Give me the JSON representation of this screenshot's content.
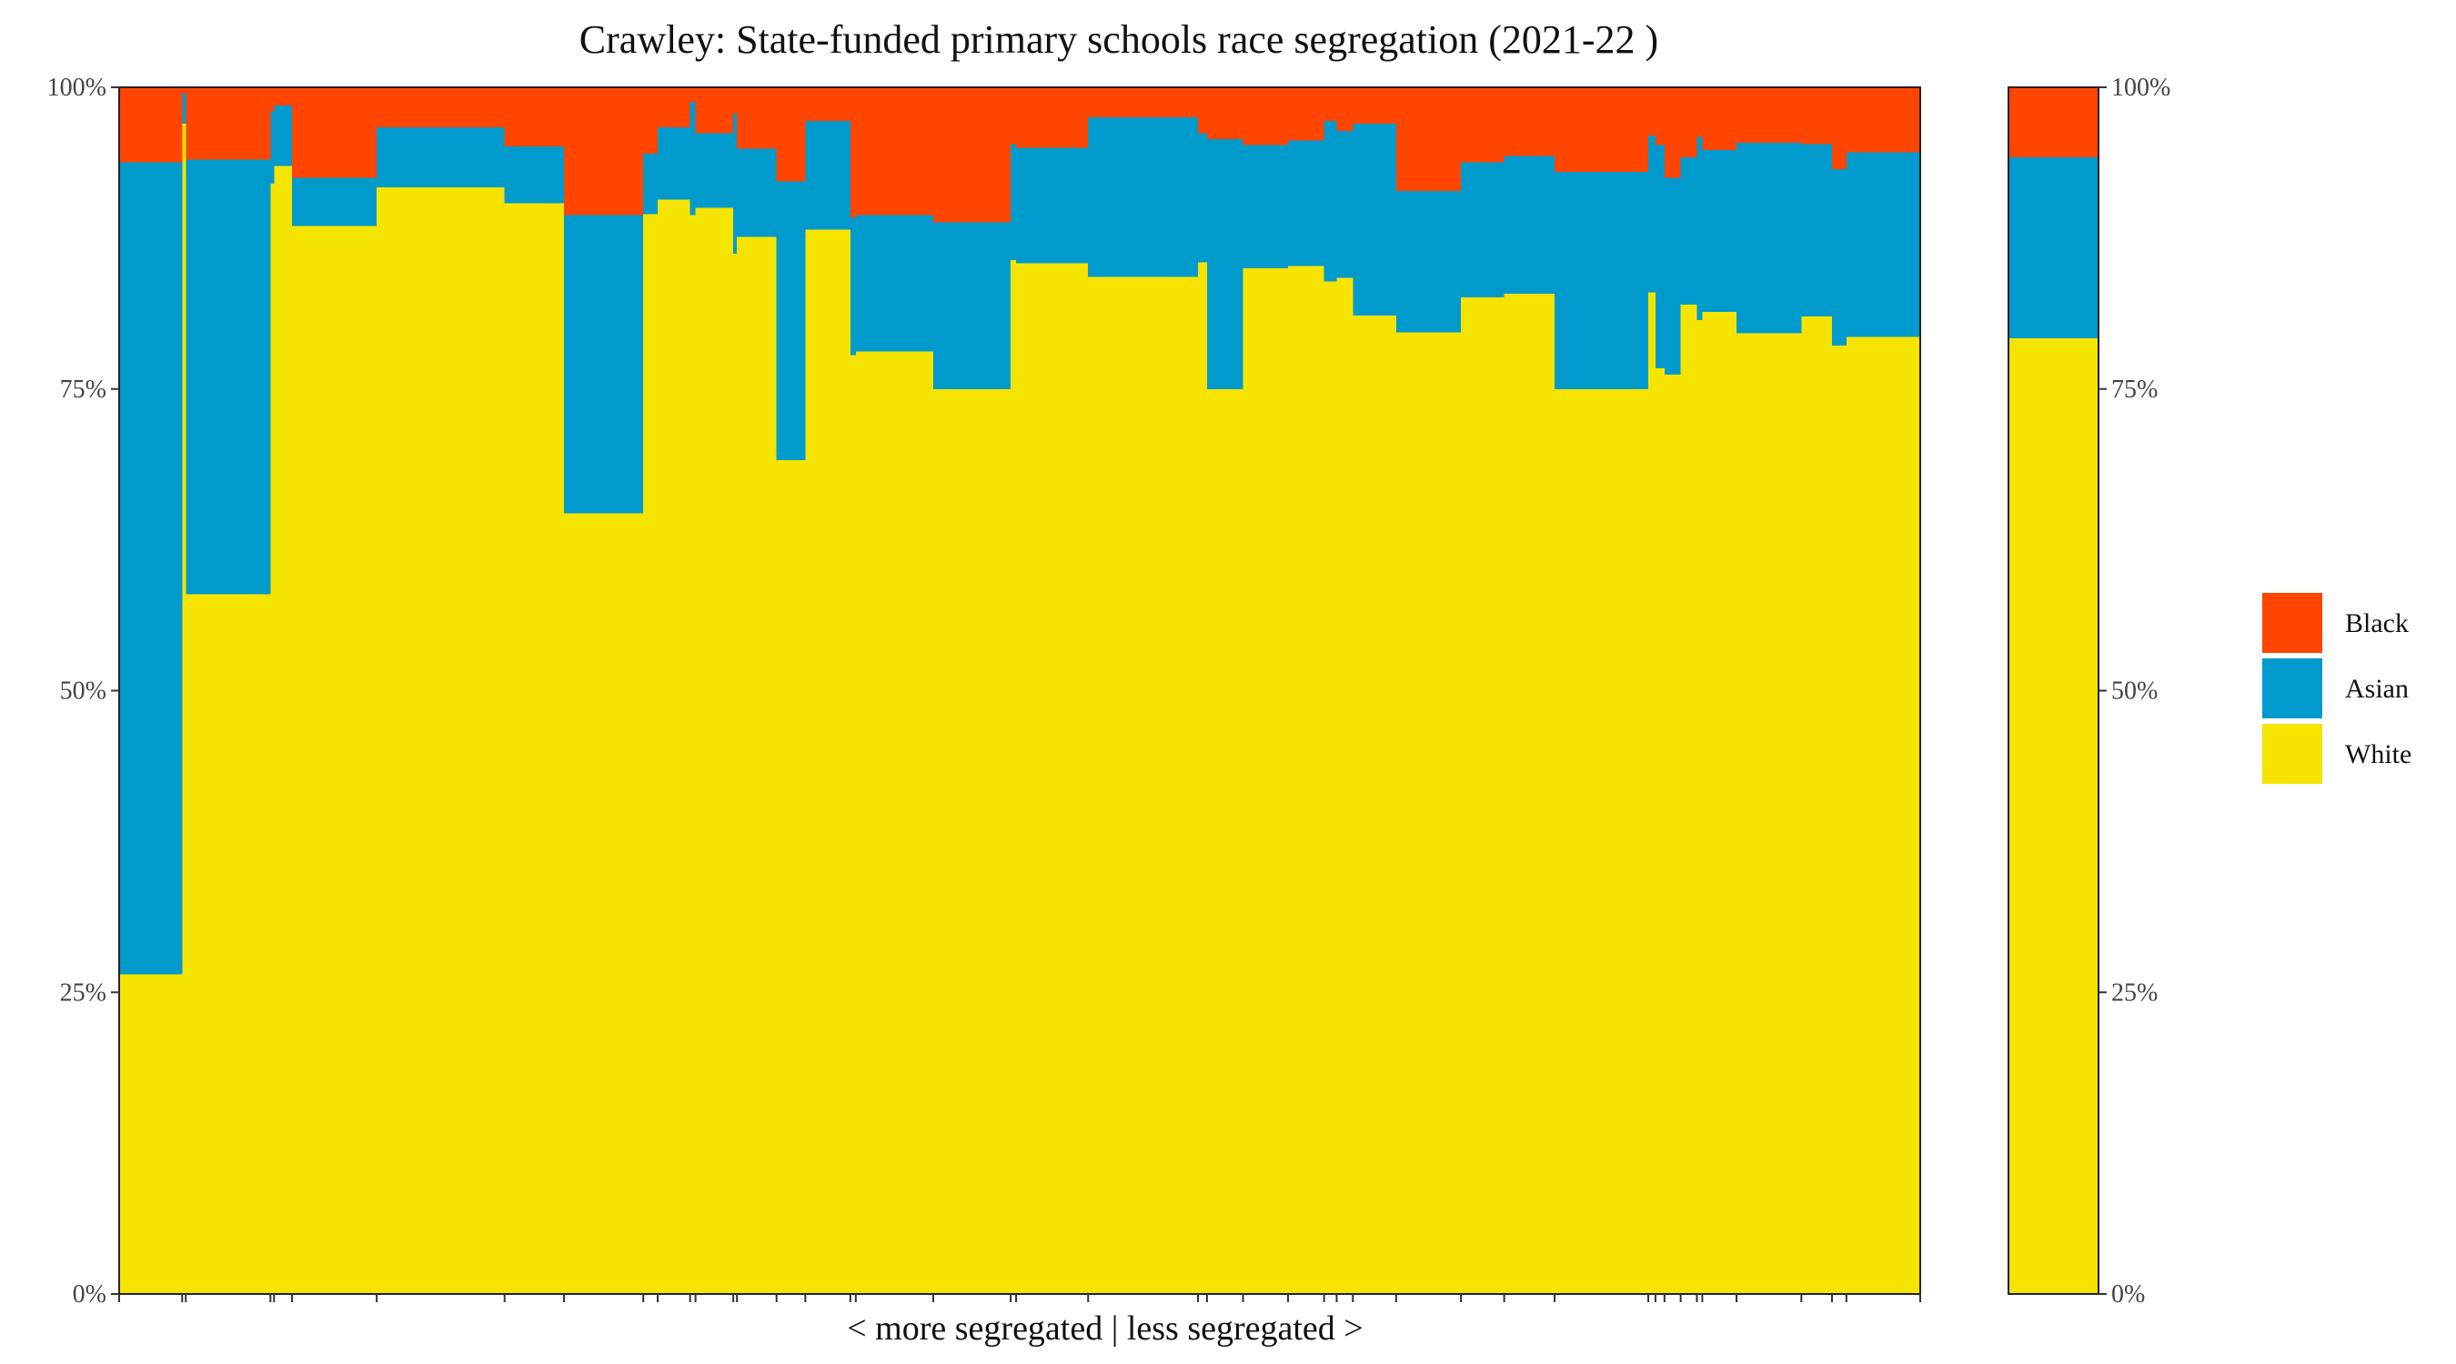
{
  "chart_data": {
    "type": "bar",
    "subtype": "stacked-variable-width-percent",
    "title": "Crawley: State-funded primary schools race segregation (2021-22 )",
    "xlabel": "< more segregated | less segregated >",
    "ylabel": "",
    "ylim": [
      0,
      100
    ],
    "yticks": [
      "0%",
      "25%",
      "50%",
      "75%",
      "100%"
    ],
    "ytick_values": [
      0,
      25,
      50,
      75,
      100
    ],
    "stack_order": [
      "White",
      "Asian",
      "Black"
    ],
    "legend": {
      "position": "right",
      "entries": [
        "Black",
        "Asian",
        "White"
      ]
    },
    "colors": {
      "Black": "#FF4500",
      "Asian": "#009ACD",
      "White": "#F5E400"
    },
    "schools_x_range": [
      0,
      100
    ],
    "schools": [
      {
        "x0": 0.0,
        "x1": 3.5,
        "white": 26.5,
        "asian": 67.3,
        "black": 6.2
      },
      {
        "x0": 3.5,
        "x1": 3.7,
        "white": 97.0,
        "asian": 2.5,
        "black": 0.5
      },
      {
        "x0": 3.7,
        "x1": 8.4,
        "white": 58.0,
        "asian": 36.0,
        "black": 6.0
      },
      {
        "x0": 8.4,
        "x1": 8.6,
        "white": 92.0,
        "asian": 6.0,
        "black": 2.0
      },
      {
        "x0": 8.6,
        "x1": 9.6,
        "white": 93.5,
        "asian": 5.0,
        "black": 1.5
      },
      {
        "x0": 9.6,
        "x1": 14.3,
        "white": 88.5,
        "asian": 4.0,
        "black": 7.5
      },
      {
        "x0": 14.3,
        "x1": 21.4,
        "white": 91.7,
        "asian": 5.0,
        "black": 3.3
      },
      {
        "x0": 21.4,
        "x1": 24.7,
        "white": 90.4,
        "asian": 4.7,
        "black": 4.9
      },
      {
        "x0": 24.7,
        "x1": 29.1,
        "white": 64.7,
        "asian": 24.7,
        "black": 10.6
      },
      {
        "x0": 29.1,
        "x1": 29.9,
        "white": 89.5,
        "asian": 5.0,
        "black": 5.5
      },
      {
        "x0": 29.9,
        "x1": 31.7,
        "white": 90.7,
        "asian": 6.0,
        "black": 3.3
      },
      {
        "x0": 31.7,
        "x1": 32.0,
        "white": 89.4,
        "asian": 9.4,
        "black": 1.2
      },
      {
        "x0": 32.0,
        "x1": 34.1,
        "white": 90.0,
        "asian": 6.2,
        "black": 3.8
      },
      {
        "x0": 34.1,
        "x1": 34.3,
        "white": 86.2,
        "asian": 11.6,
        "black": 2.2
      },
      {
        "x0": 34.3,
        "x1": 36.5,
        "white": 87.6,
        "asian": 7.3,
        "black": 5.1
      },
      {
        "x0": 36.5,
        "x1": 38.1,
        "white": 69.1,
        "asian": 23.1,
        "black": 7.8
      },
      {
        "x0": 38.1,
        "x1": 40.6,
        "white": 88.2,
        "asian": 9.0,
        "black": 2.8
      },
      {
        "x0": 40.6,
        "x1": 40.9,
        "white": 77.8,
        "asian": 11.4,
        "black": 10.8
      },
      {
        "x0": 40.9,
        "x1": 45.2,
        "white": 78.1,
        "asian": 11.3,
        "black": 10.6
      },
      {
        "x0": 45.2,
        "x1": 49.5,
        "white": 75.0,
        "asian": 13.8,
        "black": 11.2
      },
      {
        "x0": 49.5,
        "x1": 49.8,
        "white": 85.7,
        "asian": 9.6,
        "black": 4.7
      },
      {
        "x0": 49.8,
        "x1": 53.8,
        "white": 85.4,
        "asian": 9.6,
        "black": 5.0
      },
      {
        "x0": 53.8,
        "x1": 59.9,
        "white": 84.3,
        "asian": 13.2,
        "black": 2.5
      },
      {
        "x0": 59.9,
        "x1": 60.4,
        "white": 85.5,
        "asian": 10.7,
        "black": 3.8
      },
      {
        "x0": 60.4,
        "x1": 62.4,
        "white": 75.0,
        "asian": 20.7,
        "black": 4.3
      },
      {
        "x0": 62.4,
        "x1": 64.9,
        "white": 85.0,
        "asian": 10.2,
        "black": 4.8
      },
      {
        "x0": 64.9,
        "x1": 66.9,
        "white": 85.2,
        "asian": 10.4,
        "black": 4.4
      },
      {
        "x0": 66.9,
        "x1": 67.6,
        "white": 83.9,
        "asian": 13.3,
        "black": 2.8
      },
      {
        "x0": 67.6,
        "x1": 68.5,
        "white": 84.2,
        "asian": 12.2,
        "black": 3.6
      },
      {
        "x0": 68.5,
        "x1": 70.9,
        "white": 81.1,
        "asian": 15.9,
        "black": 3.0
      },
      {
        "x0": 70.9,
        "x1": 74.5,
        "white": 79.7,
        "asian": 11.7,
        "black": 8.6
      },
      {
        "x0": 74.5,
        "x1": 76.9,
        "white": 82.6,
        "asian": 11.2,
        "black": 6.2
      },
      {
        "x0": 76.9,
        "x1": 79.7,
        "white": 82.9,
        "asian": 11.4,
        "black": 5.7
      },
      {
        "x0": 79.7,
        "x1": 84.9,
        "white": 75.0,
        "asian": 18.0,
        "black": 7.0
      },
      {
        "x0": 84.9,
        "x1": 85.3,
        "white": 83.0,
        "asian": 13.0,
        "black": 4.0
      },
      {
        "x0": 85.3,
        "x1": 85.8,
        "white": 76.7,
        "asian": 18.5,
        "black": 4.8
      },
      {
        "x0": 85.8,
        "x1": 86.7,
        "white": 76.2,
        "asian": 16.3,
        "black": 7.5
      },
      {
        "x0": 86.7,
        "x1": 87.6,
        "white": 82.0,
        "asian": 12.2,
        "black": 5.8
      },
      {
        "x0": 87.6,
        "x1": 87.9,
        "white": 80.7,
        "asian": 15.2,
        "black": 4.1
      },
      {
        "x0": 87.9,
        "x1": 89.8,
        "white": 81.4,
        "asian": 13.4,
        "black": 5.2
      },
      {
        "x0": 89.8,
        "x1": 93.4,
        "white": 79.6,
        "asian": 15.8,
        "black": 4.6
      },
      {
        "x0": 93.4,
        "x1": 95.1,
        "white": 81.0,
        "asian": 14.3,
        "black": 4.7
      },
      {
        "x0": 95.1,
        "x1": 95.9,
        "white": 78.6,
        "asian": 14.6,
        "black": 6.8
      },
      {
        "x0": 95.9,
        "x1": 100.0,
        "white": 79.3,
        "asian": 15.3,
        "black": 5.4
      }
    ],
    "overall": {
      "white": 79.2,
      "asian": 15.0,
      "black": 5.8
    }
  }
}
